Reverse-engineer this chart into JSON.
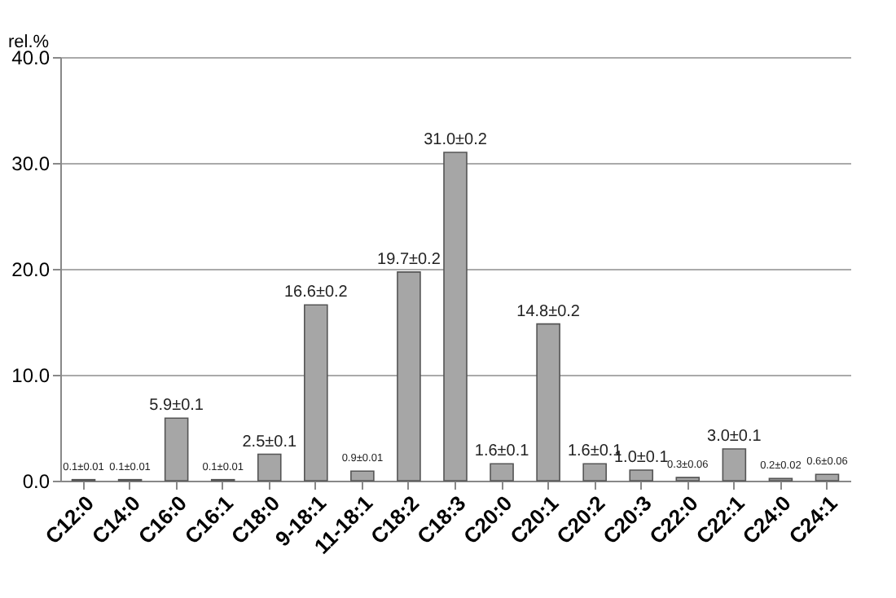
{
  "chart_data": {
    "type": "bar",
    "ylabel": "rel.%",
    "categories": [
      "C12:0",
      "C14:0",
      "C16:0",
      "C16:1",
      "C18:0",
      "9-18:1",
      "11-18:1",
      "C18:2",
      "C18:3",
      "C20:0",
      "C20:1",
      "C20:2",
      "C20:3",
      "C22:0",
      "C22:1",
      "C24:0",
      "C24:1"
    ],
    "values": [
      0.1,
      0.1,
      5.9,
      0.1,
      2.5,
      16.6,
      0.9,
      19.7,
      31.0,
      1.6,
      14.8,
      1.6,
      1.0,
      0.3,
      3.0,
      0.2,
      0.6
    ],
    "value_labels": [
      "0.1±0.01",
      "0.1±0.01",
      "5.9±0.1",
      "0.1±0.01",
      "2.5±0.1",
      "16.6±0.2",
      "0.9±0.01",
      "19.7±0.2",
      "31.0±0.2",
      "1.6±0.1",
      "14.8±0.2",
      "1.6±0.1",
      "1.0±0.1",
      "0.3±0.06",
      "3.0±0.1",
      "0.2±0.02",
      "0.6±0.06"
    ],
    "color": "#a6a6a6",
    "ylim": [
      0,
      40
    ],
    "yticks": [
      {
        "value": 0,
        "label": "0.0"
      },
      {
        "value": 10,
        "label": "10.0"
      },
      {
        "value": 20,
        "label": "20.0"
      },
      {
        "value": 30,
        "label": "30.0"
      },
      {
        "value": 40,
        "label": "40.0"
      }
    ],
    "grid": "y"
  }
}
